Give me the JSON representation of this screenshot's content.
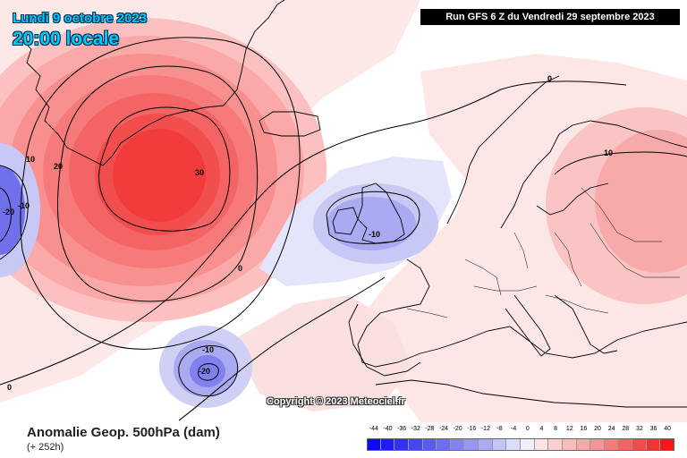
{
  "header": {
    "date_label": "Lundi 9 octobre 2023",
    "time_label": "20:00 locale",
    "run_label": "Run GFS 6 Z du Vendredi 29 septembre 2023"
  },
  "map": {
    "copyright": "Copyright © 2023 Meteociel.fr",
    "contour_labels": [
      {
        "name": "contour-label-high-30",
        "text": "30"
      },
      {
        "name": "contour-label-high-20",
        "text": "20"
      },
      {
        "name": "contour-label-high-10",
        "text": "10"
      },
      {
        "name": "contour-label-zero-atlantic",
        "text": "0"
      },
      {
        "name": "contour-label-west-neg20",
        "text": "-20"
      },
      {
        "name": "contour-label-west-neg10",
        "text": "-10"
      },
      {
        "name": "contour-label-west-zero",
        "text": "0"
      },
      {
        "name": "contour-label-uk-neg10",
        "text": "-10"
      },
      {
        "name": "contour-label-azores-neg10",
        "text": "-10"
      },
      {
        "name": "contour-label-azores-neg20",
        "text": "-20"
      },
      {
        "name": "contour-label-north-zero",
        "text": "0"
      },
      {
        "name": "contour-label-east-10",
        "text": "10"
      }
    ],
    "anomaly_features": [
      {
        "name": "greenland-high",
        "value": 30
      },
      {
        "name": "uk-low",
        "value": -10
      },
      {
        "name": "azores-low",
        "value": -20
      },
      {
        "name": "west-edge-low",
        "value": -20
      },
      {
        "name": "east-europe-high",
        "value": 10
      }
    ]
  },
  "footer": {
    "field_title": "Anomalie Geop. 500hPa (dam)",
    "lead_time": "(+ 252h)"
  },
  "legend": {
    "labels": [
      "-44",
      "-40",
      "-36",
      "-32",
      "-28",
      "-24",
      "-20",
      "-16",
      "-12",
      "-8",
      "-4",
      "0",
      "4",
      "8",
      "12",
      "16",
      "20",
      "24",
      "28",
      "32",
      "36",
      "40"
    ],
    "colors": [
      "#0a0af5",
      "#1e1ef5",
      "#3232f5",
      "#4646f5",
      "#5a5af5",
      "#6e6ef5",
      "#8282f5",
      "#9696f5",
      "#aaaaf5",
      "#c4c4f8",
      "#dcdcfb",
      "#f0f0fd",
      "#fde4e4",
      "#fdd0d0",
      "#fcbcbc",
      "#fba8a8",
      "#fa9494",
      "#f97a7a",
      "#f76262",
      "#f54a4a",
      "#f33232",
      "#f01818"
    ]
  }
}
